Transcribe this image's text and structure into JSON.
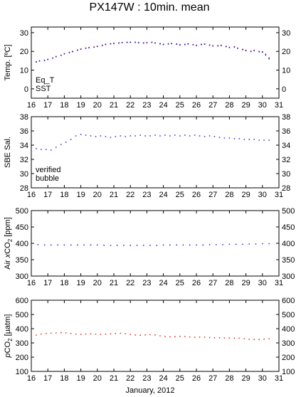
{
  "title": "PX147W : 10min. mean",
  "xlabel": "January, 2012",
  "colors": {
    "eq_t": "#d42020",
    "sst": "#2020c8",
    "verified": "#3030d0",
    "bubble": "#b020b0",
    "air": "#3030d0",
    "pco2": "#e03030"
  },
  "chart_data": [
    {
      "type": "scatter",
      "ylabel": "Temp. [ºC]",
      "xlim": [
        16,
        31
      ],
      "ylim": [
        -5,
        33
      ],
      "xticks": [
        16,
        17,
        18,
        19,
        20,
        21,
        22,
        23,
        24,
        25,
        26,
        27,
        28,
        29,
        30,
        31
      ],
      "yticks": [
        0,
        10,
        20,
        30
      ],
      "legend": "bottom-left",
      "series": [
        {
          "name": "Eq_T",
          "color": "#d42020",
          "x": [
            16.3,
            16.5,
            16.8,
            17.0,
            17.3,
            17.5,
            17.8,
            18.0,
            18.3,
            18.5,
            18.8,
            19.0,
            19.3,
            19.5,
            19.8,
            20.0,
            20.3,
            20.5,
            20.8,
            21.0,
            21.3,
            21.5,
            21.8,
            22.0,
            22.3,
            22.5,
            22.8,
            23.0,
            23.3,
            23.5,
            23.8,
            24.0,
            24.3,
            24.5,
            24.8,
            25.0,
            25.3,
            25.5,
            25.8,
            26.0,
            26.3,
            26.5,
            26.8,
            27.0,
            27.3,
            27.5,
            27.8,
            28.0,
            28.3,
            28.5,
            28.8,
            29.0,
            29.3,
            29.5,
            29.8,
            30.0,
            30.2,
            30.4
          ],
          "y": [
            14.5,
            15.0,
            15.3,
            15.8,
            16.5,
            17.3,
            18.0,
            18.8,
            19.5,
            20.0,
            20.8,
            21.3,
            21.8,
            22.1,
            22.4,
            22.8,
            23.3,
            23.8,
            24.1,
            24.4,
            24.6,
            24.8,
            24.9,
            25.0,
            25.0,
            24.8,
            24.6,
            24.7,
            24.9,
            24.6,
            24.2,
            23.8,
            24.1,
            24.3,
            24.0,
            23.6,
            23.8,
            24.1,
            23.7,
            23.3,
            23.8,
            24.0,
            23.5,
            23.0,
            23.1,
            23.3,
            22.7,
            22.2,
            22.5,
            21.8,
            21.1,
            20.6,
            20.1,
            20.6,
            20.0,
            19.8,
            18.5,
            16.5
          ]
        },
        {
          "name": "SST",
          "color": "#2020c8",
          "x": [
            16.3,
            16.5,
            16.8,
            17.0,
            17.3,
            17.5,
            17.8,
            18.0,
            18.3,
            18.5,
            18.8,
            19.0,
            19.3,
            19.5,
            19.8,
            20.0,
            20.3,
            20.5,
            20.8,
            21.0,
            21.3,
            21.5,
            21.8,
            22.0,
            22.3,
            22.5,
            22.8,
            23.0,
            23.3,
            23.5,
            23.8,
            24.0,
            24.3,
            24.5,
            24.8,
            25.0,
            25.3,
            25.5,
            25.8,
            26.0,
            26.3,
            26.5,
            26.8,
            27.0,
            27.3,
            27.5,
            27.8,
            28.0,
            28.3,
            28.5,
            28.8,
            29.0,
            29.3,
            29.5,
            29.8,
            30.0,
            30.2,
            30.4
          ],
          "y": [
            14.3,
            14.8,
            15.1,
            15.6,
            16.3,
            17.1,
            17.8,
            18.6,
            19.3,
            19.8,
            20.6,
            21.1,
            21.6,
            21.9,
            22.2,
            22.6,
            23.1,
            23.6,
            23.9,
            24.2,
            24.4,
            24.6,
            24.7,
            24.8,
            24.8,
            24.6,
            24.4,
            24.5,
            24.7,
            24.4,
            24.0,
            23.6,
            23.9,
            24.1,
            23.8,
            23.4,
            23.6,
            23.9,
            23.5,
            23.1,
            23.6,
            23.8,
            23.3,
            22.8,
            22.9,
            23.1,
            22.5,
            22.0,
            22.3,
            21.6,
            20.9,
            20.4,
            19.9,
            20.4,
            19.8,
            19.5,
            18.0,
            16.0
          ]
        }
      ]
    },
    {
      "type": "scatter",
      "ylabel": "SBE Sal.",
      "xlim": [
        16,
        31
      ],
      "ylim": [
        28,
        38
      ],
      "xticks": [
        16,
        17,
        18,
        19,
        20,
        21,
        22,
        23,
        24,
        25,
        26,
        27,
        28,
        29,
        30,
        31
      ],
      "yticks": [
        28,
        30,
        32,
        34,
        36,
        38
      ],
      "legend": "bottom-left",
      "series": [
        {
          "name": "verified",
          "color": "#3030d0",
          "x": [
            16.3,
            16.6,
            16.9,
            17.2,
            17.5,
            17.8,
            18.1,
            18.4,
            18.7,
            19.0,
            19.3,
            19.6,
            19.9,
            20.2,
            20.5,
            20.8,
            21.1,
            21.4,
            21.7,
            22.0,
            22.3,
            22.6,
            22.9,
            23.2,
            23.5,
            23.8,
            24.1,
            24.4,
            24.7,
            25.0,
            25.3,
            25.6,
            25.9,
            26.2,
            26.5,
            26.8,
            27.1,
            27.4,
            27.7,
            28.0,
            28.3,
            28.6,
            28.9,
            29.2,
            29.5,
            29.8,
            30.1,
            30.4
          ],
          "y": [
            33.5,
            33.4,
            33.4,
            33.3,
            33.7,
            34.1,
            34.4,
            34.8,
            35.3,
            35.5,
            35.4,
            35.3,
            35.2,
            35.3,
            35.2,
            35.1,
            35.2,
            35.3,
            35.2,
            35.3,
            35.3,
            35.4,
            35.3,
            35.3,
            35.4,
            35.3,
            35.4,
            35.3,
            35.4,
            35.3,
            35.4,
            35.3,
            35.4,
            35.3,
            35.2,
            35.3,
            35.2,
            35.1,
            35.0,
            35.0,
            34.9,
            34.9,
            34.8,
            34.8,
            34.8,
            34.7,
            34.7,
            34.7
          ]
        },
        {
          "name": "bubble",
          "color": "#b020b0",
          "x": [],
          "y": []
        }
      ]
    },
    {
      "type": "scatter",
      "ylabel_parts": [
        "Air ",
        "x",
        "CO",
        "2",
        " [ppm]"
      ],
      "xlim": [
        16,
        31
      ],
      "ylim": [
        300,
        500
      ],
      "xticks": [
        16,
        17,
        18,
        19,
        20,
        21,
        22,
        23,
        24,
        25,
        26,
        27,
        28,
        29,
        30,
        31
      ],
      "yticks": [
        300,
        350,
        400,
        450,
        500
      ],
      "series": [
        {
          "color": "#3030d0",
          "x": [
            16.4,
            16.8,
            17.2,
            17.6,
            18.0,
            18.4,
            18.8,
            19.2,
            19.6,
            20.0,
            20.4,
            20.8,
            21.2,
            21.6,
            22.0,
            22.4,
            22.8,
            23.2,
            23.6,
            24.0,
            24.4,
            24.8,
            25.2,
            25.6,
            26.0,
            26.4,
            26.8,
            27.2,
            27.6,
            28.0,
            28.4,
            28.8,
            29.2,
            29.6,
            30.0,
            30.4
          ],
          "y": [
            396,
            395,
            395,
            395,
            395,
            395,
            395,
            395,
            395,
            395,
            394,
            394,
            394,
            394,
            394,
            394,
            394,
            394,
            394,
            395,
            395,
            395,
            395,
            395,
            395,
            395,
            396,
            396,
            396,
            397,
            397,
            397,
            398,
            398,
            399,
            399
          ]
        }
      ]
    },
    {
      "type": "scatter",
      "ylabel_parts": [
        "p",
        "CO",
        "2",
        " [µatm]"
      ],
      "xlim": [
        16,
        31
      ],
      "ylim": [
        100,
        600
      ],
      "xticks": [
        16,
        17,
        18,
        19,
        20,
        21,
        22,
        23,
        24,
        25,
        26,
        27,
        28,
        29,
        30,
        31
      ],
      "yticks": [
        100,
        200,
        300,
        400,
        500,
        600
      ],
      "series": [
        {
          "color": "#e03030",
          "x": [
            16.3,
            16.6,
            16.9,
            17.2,
            17.5,
            17.8,
            18.1,
            18.4,
            18.7,
            19.0,
            19.3,
            19.6,
            19.9,
            20.2,
            20.5,
            20.8,
            21.1,
            21.4,
            21.7,
            22.0,
            22.3,
            22.6,
            22.9,
            23.2,
            23.5,
            23.8,
            24.1,
            24.4,
            24.7,
            25.0,
            25.3,
            25.6,
            25.9,
            26.2,
            26.5,
            26.8,
            27.1,
            27.4,
            27.7,
            28.0,
            28.3,
            28.6,
            28.9,
            29.2,
            29.5,
            29.8,
            30.1,
            30.4
          ],
          "y": [
            355,
            362,
            366,
            368,
            370,
            372,
            370,
            366,
            362,
            360,
            362,
            364,
            362,
            360,
            362,
            364,
            366,
            368,
            365,
            360,
            356,
            354,
            356,
            358,
            356,
            350,
            346,
            343,
            344,
            346,
            345,
            342,
            340,
            341,
            340,
            338,
            336,
            336,
            335,
            334,
            334,
            333,
            330,
            326,
            324,
            324,
            326,
            330
          ]
        }
      ]
    }
  ]
}
